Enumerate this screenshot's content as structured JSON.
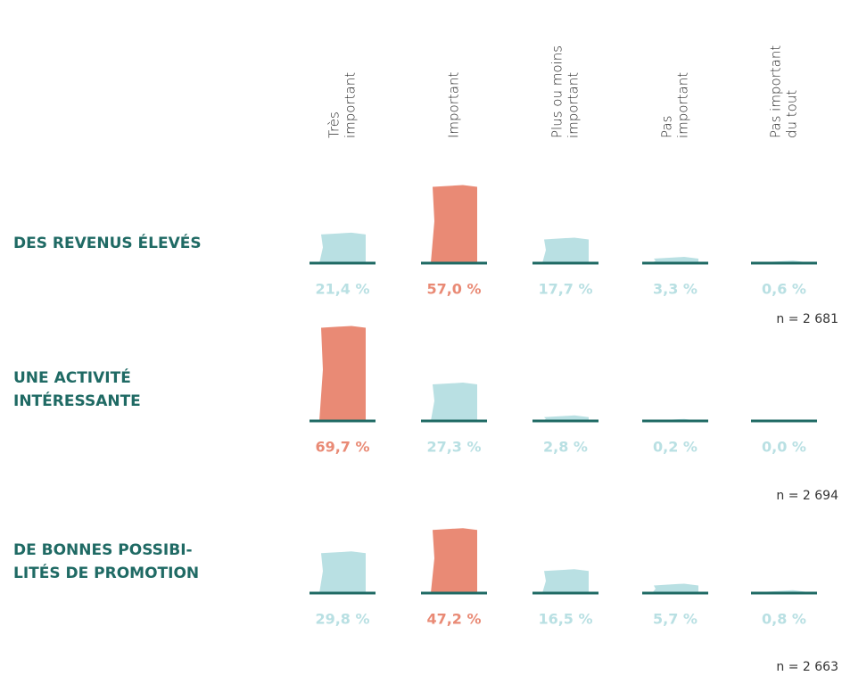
{
  "chart_data": {
    "type": "bar",
    "categories": [
      [
        "Très",
        "important"
      ],
      [
        "Important"
      ],
      [
        "Plus ou moins",
        "important"
      ],
      [
        "Pas",
        "important"
      ],
      [
        "Pas important",
        "du tout"
      ]
    ],
    "color": "#b9e0e3",
    "highlight_color": "#e98a75",
    "baseline_color": "#1f6a64",
    "series": [
      {
        "name": [
          "DES REVENUS ÉLEVÉS"
        ],
        "values": [
          21.4,
          57.0,
          17.7,
          3.3,
          0.6
        ],
        "value_labels": [
          "21,4 %",
          "57,0 %",
          "17,7 %",
          "3,3 %",
          "0,6 %"
        ],
        "note": "n = 2 681"
      },
      {
        "name": [
          "UNE ACTIVITÉ",
          "INTÉRESSANTE"
        ],
        "values": [
          69.7,
          27.3,
          2.8,
          0.2,
          0.0
        ],
        "value_labels": [
          "69,7 %",
          "27,3 %",
          "2,8 %",
          "0,2 %",
          "0,0 %"
        ],
        "note": "n = 2 694"
      },
      {
        "name": [
          "DE BONNES POSSIBI-",
          "LITÉS DE PROMOTION"
        ],
        "values": [
          29.8,
          47.2,
          16.5,
          5.7,
          0.8
        ],
        "value_labels": [
          "29,8 %",
          "47,2 %",
          "16,5 %",
          "5,7 %",
          "0,8 %"
        ],
        "note": "n = 2 663"
      }
    ]
  }
}
